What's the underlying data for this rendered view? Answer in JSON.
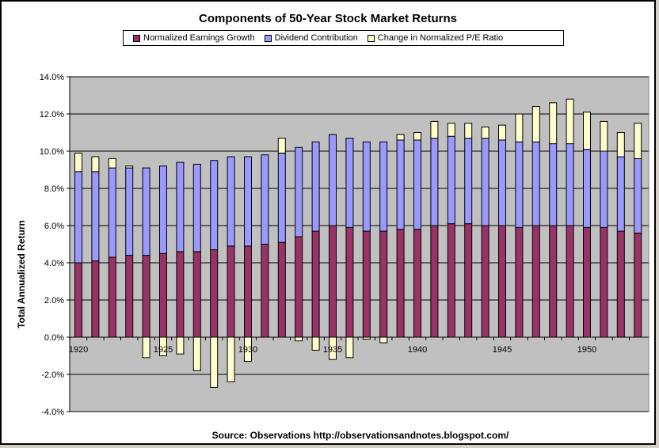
{
  "chart_data": {
    "type": "bar",
    "stacked": true,
    "title": "Components of 50-Year Stock Market Returns",
    "ylabel": "Total Annualized  Return",
    "xlabel": "",
    "source": "Source: Observations  http://observationsandnotes.blogspot.com/",
    "ylim": [
      -0.04,
      0.14
    ],
    "y_ticks": [
      -0.04,
      -0.02,
      0.0,
      0.02,
      0.04,
      0.06,
      0.08,
      0.1,
      0.12,
      0.14
    ],
    "y_tick_labels": [
      "-4.0%",
      "-2.0%",
      "0.0%",
      "2.0%",
      "4.0%",
      "6.0%",
      "8.0%",
      "10.0%",
      "12.0%",
      "14.0%"
    ],
    "x": [
      1920,
      1921,
      1922,
      1923,
      1924,
      1925,
      1926,
      1927,
      1928,
      1929,
      1930,
      1931,
      1932,
      1933,
      1934,
      1935,
      1936,
      1937,
      1938,
      1939,
      1940,
      1941,
      1942,
      1943,
      1944,
      1945,
      1946,
      1947,
      1948,
      1949,
      1950,
      1951,
      1952,
      1953
    ],
    "x_tick_labels": [
      {
        "year": 1920,
        "label": "1920"
      },
      {
        "year": 1925,
        "label": "1925"
      },
      {
        "year": 1930,
        "label": "1930"
      },
      {
        "year": 1935,
        "label": "1935"
      },
      {
        "year": 1940,
        "label": "1940"
      },
      {
        "year": 1945,
        "label": "1945"
      },
      {
        "year": 1950,
        "label": "1950"
      }
    ],
    "grid": true,
    "legend": "top",
    "series": [
      {
        "name": "Normalized Earnings Growth",
        "color": "#993366",
        "values": [
          0.04,
          0.041,
          0.043,
          0.044,
          0.044,
          0.045,
          0.046,
          0.046,
          0.047,
          0.049,
          0.049,
          0.05,
          0.051,
          0.054,
          0.057,
          0.06,
          0.059,
          0.057,
          0.057,
          0.058,
          0.058,
          0.06,
          0.061,
          0.061,
          0.06,
          0.06,
          0.059,
          0.06,
          0.06,
          0.06,
          0.059,
          0.059,
          0.057,
          0.056
        ]
      },
      {
        "name": "Dividend Contribution",
        "color": "#9999ff",
        "values": [
          0.049,
          0.048,
          0.048,
          0.047,
          0.047,
          0.047,
          0.048,
          0.047,
          0.048,
          0.048,
          0.048,
          0.048,
          0.048,
          0.048,
          0.048,
          0.049,
          0.048,
          0.048,
          0.048,
          0.048,
          0.048,
          0.047,
          0.047,
          0.046,
          0.047,
          0.046,
          0.046,
          0.045,
          0.044,
          0.044,
          0.042,
          0.041,
          0.04,
          0.04
        ]
      },
      {
        "name": "Change in Normalized P/E Ratio",
        "color": "#ffffcc",
        "values": [
          0.01,
          0.008,
          0.005,
          0.001,
          -0.011,
          -0.01,
          -0.009,
          -0.018,
          -0.027,
          -0.024,
          -0.013,
          0.0,
          0.008,
          -0.002,
          -0.007,
          -0.012,
          -0.011,
          -0.001,
          -0.003,
          0.003,
          0.004,
          0.009,
          0.007,
          0.008,
          0.006,
          0.008,
          0.015,
          0.019,
          0.022,
          0.024,
          0.02,
          0.016,
          0.013,
          0.019
        ]
      }
    ]
  }
}
